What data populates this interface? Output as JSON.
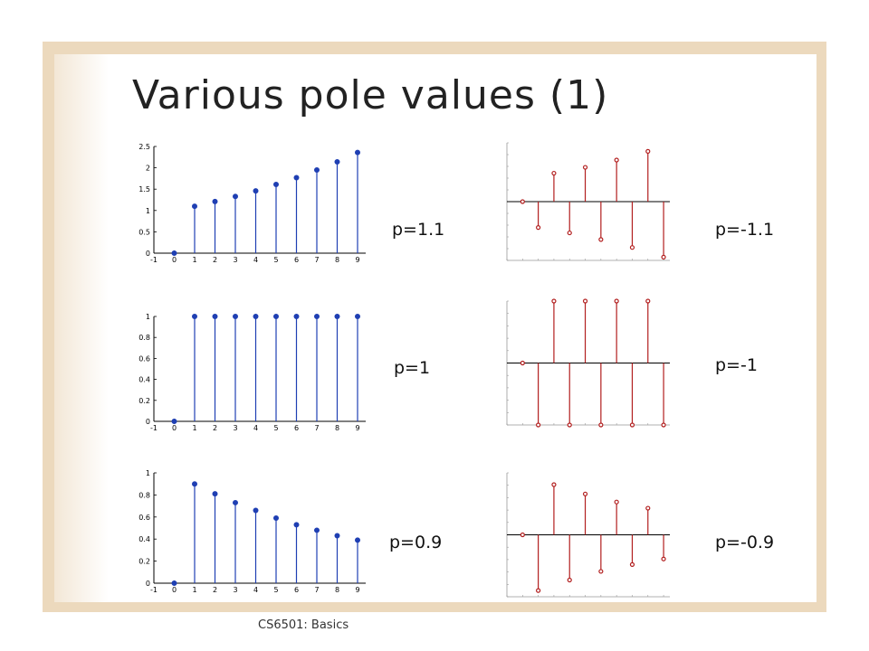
{
  "slide": {
    "title": "Various pole values (1)",
    "footer": "CS6501: Basics"
  },
  "colors": {
    "frame": "#ecd9bd",
    "positive_stem": "#1f3fb3",
    "negative_stem": "#b21e1e"
  },
  "labels": {
    "p_1_1": "p=1.1",
    "p_1": "p=1",
    "p_0_9": "p=0.9",
    "p_neg_1_1": "p=-1.1",
    "p_neg_1": "p=-1",
    "p_neg_0_9": "p=-0.9"
  },
  "chart_data": [
    {
      "id": "p1_1",
      "type": "stem",
      "x": [
        0,
        1,
        2,
        3,
        4,
        5,
        6,
        7,
        8,
        9
      ],
      "y": [
        0,
        1.1,
        1.21,
        1.33,
        1.46,
        1.61,
        1.77,
        1.95,
        2.14,
        2.36
      ],
      "xlim": [
        -1,
        9.4
      ],
      "ylim": [
        0,
        2.5
      ],
      "yticks": [
        0,
        0.5,
        1,
        1.5,
        2,
        2.5
      ],
      "ytick_labels": [
        "0",
        "0.5",
        "1",
        "1.5",
        "2",
        "2.5"
      ],
      "xtick_labels": [
        "-1",
        "0",
        "1",
        "2",
        "3",
        "4",
        "5",
        "6",
        "7",
        "8",
        "9"
      ],
      "color": "#1f3fb3"
    },
    {
      "id": "p1",
      "type": "stem",
      "x": [
        0,
        1,
        2,
        3,
        4,
        5,
        6,
        7,
        8,
        9
      ],
      "y": [
        0,
        1,
        1,
        1,
        1,
        1,
        1,
        1,
        1,
        1
      ],
      "xlim": [
        -1,
        9.4
      ],
      "ylim": [
        0,
        1
      ],
      "yticks": [
        0,
        0.2,
        0.4,
        0.6,
        0.8,
        1
      ],
      "ytick_labels": [
        "0",
        "0.2",
        "0.4",
        "0.6",
        "0.8",
        "1"
      ],
      "xtick_labels": [
        "-1",
        "0",
        "1",
        "2",
        "3",
        "4",
        "5",
        "6",
        "7",
        "8",
        "9"
      ],
      "color": "#1f3fb3"
    },
    {
      "id": "p0_9",
      "type": "stem",
      "x": [
        0,
        1,
        2,
        3,
        4,
        5,
        6,
        7,
        8,
        9
      ],
      "y": [
        0,
        0.9,
        0.81,
        0.73,
        0.66,
        0.59,
        0.53,
        0.48,
        0.43,
        0.39
      ],
      "xlim": [
        -1,
        9.4
      ],
      "ylim": [
        0,
        1
      ],
      "yticks": [
        0,
        0.2,
        0.4,
        0.6,
        0.8,
        1
      ],
      "ytick_labels": [
        "0",
        "0.2",
        "0.4",
        "0.6",
        "0.8",
        "1"
      ],
      "xtick_labels": [
        "-1",
        "0",
        "1",
        "2",
        "3",
        "4",
        "5",
        "6",
        "7",
        "8",
        "9"
      ],
      "color": "#1f3fb3"
    },
    {
      "id": "pneg1_1",
      "type": "stem",
      "x": [
        0,
        1,
        2,
        3,
        4,
        5,
        6,
        7,
        8,
        9
      ],
      "y": [
        0,
        -1.1,
        1.21,
        -1.33,
        1.46,
        -1.61,
        1.77,
        -1.95,
        2.14,
        -2.36
      ],
      "xlim": [
        -1,
        9.4
      ],
      "ylim": [
        -2.5,
        2.5
      ],
      "color": "#b21e1e"
    },
    {
      "id": "pneg1",
      "type": "stem",
      "x": [
        0,
        1,
        2,
        3,
        4,
        5,
        6,
        7,
        8,
        9
      ],
      "y": [
        0,
        -1,
        1,
        -1,
        1,
        -1,
        1,
        -1,
        1,
        -1
      ],
      "xlim": [
        -1,
        9.4
      ],
      "ylim": [
        -1,
        1
      ],
      "color": "#b21e1e"
    },
    {
      "id": "pneg0_9",
      "type": "stem",
      "x": [
        0,
        1,
        2,
        3,
        4,
        5,
        6,
        7,
        8,
        9
      ],
      "y": [
        0,
        -0.9,
        0.81,
        -0.73,
        0.66,
        -0.59,
        0.53,
        -0.48,
        0.43,
        -0.39
      ],
      "xlim": [
        -1,
        9.4
      ],
      "ylim": [
        -1,
        1
      ],
      "color": "#b21e1e"
    }
  ]
}
